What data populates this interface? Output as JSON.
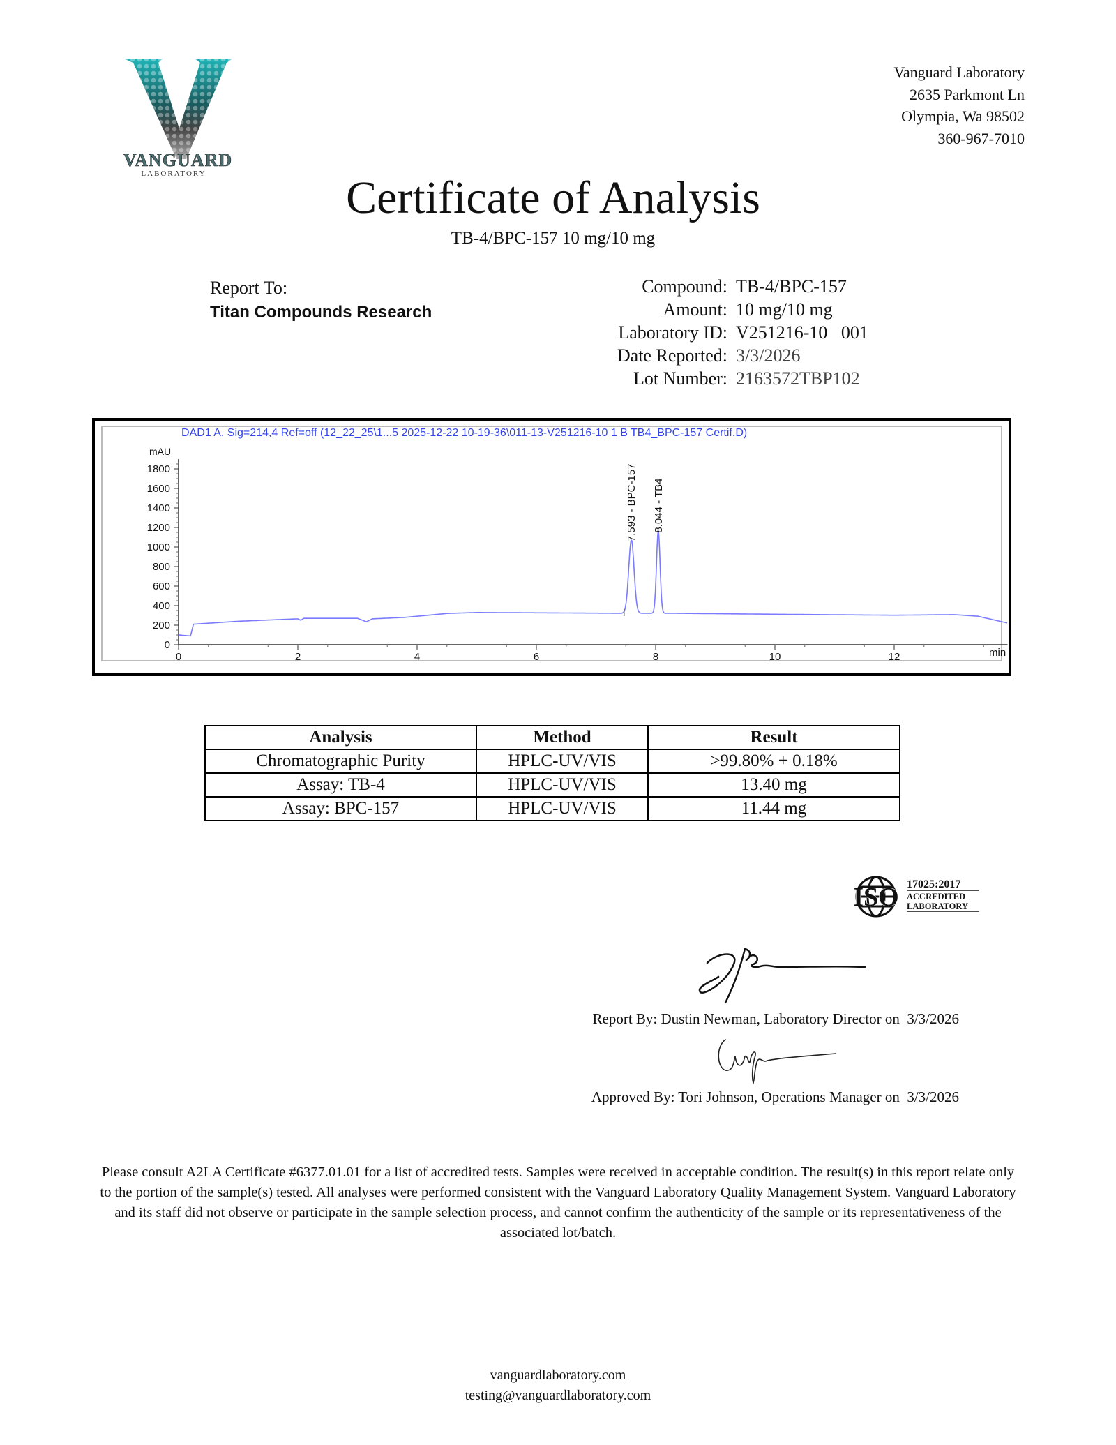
{
  "logo": {
    "text": "VANGUARD",
    "subtext": "LABORATORY",
    "colors": {
      "teal": "#1fb5b8",
      "gray": "#777777"
    }
  },
  "address": [
    "Vanguard Laboratory",
    "2635 Parkmont Ln",
    "Olympia, Wa 98502",
    "360-967-7010"
  ],
  "title": "Certificate of Analysis",
  "subtitle": "TB-4/BPC-157 10 mg/10 mg",
  "report_to": {
    "label": "Report To:",
    "client": "Titan Compounds Research"
  },
  "fields": [
    {
      "label": "Compound:",
      "value": "TB-4/BPC-157"
    },
    {
      "label": "Amount:",
      "value": "10 mg/10 mg"
    },
    {
      "label": "Laboratory ID:",
      "value": "V251216-10   001"
    },
    {
      "label": "Date Reported:",
      "value": "3/3/2026"
    },
    {
      "label": "Lot Number:",
      "value": "2163572TBP102"
    }
  ],
  "chart_data": {
    "type": "line",
    "title": "DAD1 A, Sig=214,4 Ref=off (12_22_25\\1...5 2025-12-22 10-19-36\\011-13-V251216-10 1 B TB4_BPC-157 Certif.D)",
    "xlabel": "min",
    "ylabel": "mAU",
    "xlim": [
      0,
      13.9
    ],
    "ylim": [
      0,
      1900
    ],
    "xticks": [
      "0",
      "2",
      "4",
      "6",
      "8",
      "10",
      "12"
    ],
    "yticks": [
      "0",
      "200",
      "400",
      "600",
      "800",
      "1000",
      "1200",
      "1400",
      "1600",
      "1800"
    ],
    "line_color": "#7b7bff",
    "baseline": [
      [
        0,
        100
      ],
      [
        0.2,
        90
      ],
      [
        0.25,
        210
      ],
      [
        1,
        240
      ],
      [
        2,
        265
      ],
      [
        2.05,
        250
      ],
      [
        2.1,
        270
      ],
      [
        3,
        270
      ],
      [
        3.15,
        235
      ],
      [
        3.25,
        265
      ],
      [
        3.8,
        280
      ],
      [
        4.5,
        320
      ],
      [
        5,
        330
      ],
      [
        7.4,
        322
      ],
      [
        8.2,
        322
      ],
      [
        10,
        312
      ],
      [
        12,
        302
      ],
      [
        13,
        308
      ],
      [
        13.4,
        292
      ],
      [
        13.9,
        222
      ]
    ],
    "peaks": [
      {
        "rt": 7.593,
        "height": 1070,
        "label": "7.593 -  BPC-157"
      },
      {
        "rt": 8.044,
        "height": 1160,
        "label": "8.044 -  TB4"
      }
    ]
  },
  "results_table": {
    "headers": [
      "Analysis",
      "Method",
      "Result"
    ],
    "rows": [
      [
        "Chromatographic Purity",
        "HPLC-UV/VIS",
        ">99.80% + 0.18%"
      ],
      [
        "Assay: TB-4",
        "HPLC-UV/VIS",
        "13.40 mg"
      ],
      [
        "Assay: BPC-157",
        "HPLC-UV/VIS",
        "11.44 mg"
      ]
    ]
  },
  "iso_badge": {
    "mark": "ISO",
    "standard": "17025:2017",
    "line1": "ACCREDITED",
    "line2": "LABORATORY"
  },
  "signoff": {
    "report_by": "Report By: Dustin Newman, Laboratory Director on  3/3/2026",
    "approved_by": "Approved By: Tori Johnson, Operations Manager on  3/3/2026"
  },
  "disclaimer": "Please consult A2LA Certificate #6377.01.01 for a list of accredited tests. Samples were received in acceptable condition. The result(s) in this report relate only to the portion of the sample(s) tested. All analyses were performed consistent with the Vanguard Laboratory Quality Management System. Vanguard Laboratory and its staff did not observe or participate in the sample selection process, and cannot confirm the authenticity of the sample or its representativeness of the associated lot/batch.",
  "footer": {
    "website": "vanguardlaboratory.com",
    "email": "testing@vanguardlaboratory.com"
  }
}
